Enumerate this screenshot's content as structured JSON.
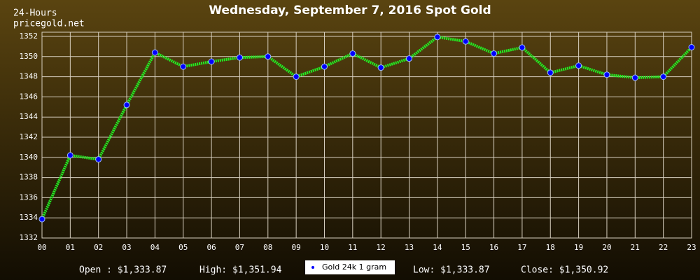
{
  "chart_data": {
    "type": "line",
    "title": "Wednesday, September 7, 2016 Spot Gold",
    "corner_labels": [
      "24-Hours",
      "pricegold.net"
    ],
    "categories": [
      "00",
      "01",
      "02",
      "03",
      "04",
      "05",
      "06",
      "07",
      "08",
      "09",
      "10",
      "11",
      "12",
      "13",
      "14",
      "15",
      "16",
      "17",
      "18",
      "19",
      "20",
      "21",
      "22",
      "23"
    ],
    "series": [
      {
        "name": "Gold 24k 1 gram",
        "color": "#22ee22",
        "marker_color": "#0000ff",
        "values": [
          1333.87,
          1340.2,
          1339.8,
          1345.2,
          1350.4,
          1349.0,
          1349.5,
          1349.9,
          1350.0,
          1348.0,
          1349.0,
          1350.3,
          1348.9,
          1349.8,
          1351.94,
          1351.5,
          1350.3,
          1350.9,
          1348.4,
          1349.1,
          1348.2,
          1347.9,
          1348.0,
          1350.92
        ]
      }
    ],
    "ylim": [
      1332,
      1352
    ],
    "yticks": [
      1332,
      1334,
      1336,
      1338,
      1340,
      1342,
      1344,
      1346,
      1348,
      1350,
      1352
    ],
    "grid": true,
    "summary": [
      "Open : $1,333.87",
      "High: $1,351.94",
      "Low: $1,333.87",
      "Close: $1,350.92"
    ]
  }
}
